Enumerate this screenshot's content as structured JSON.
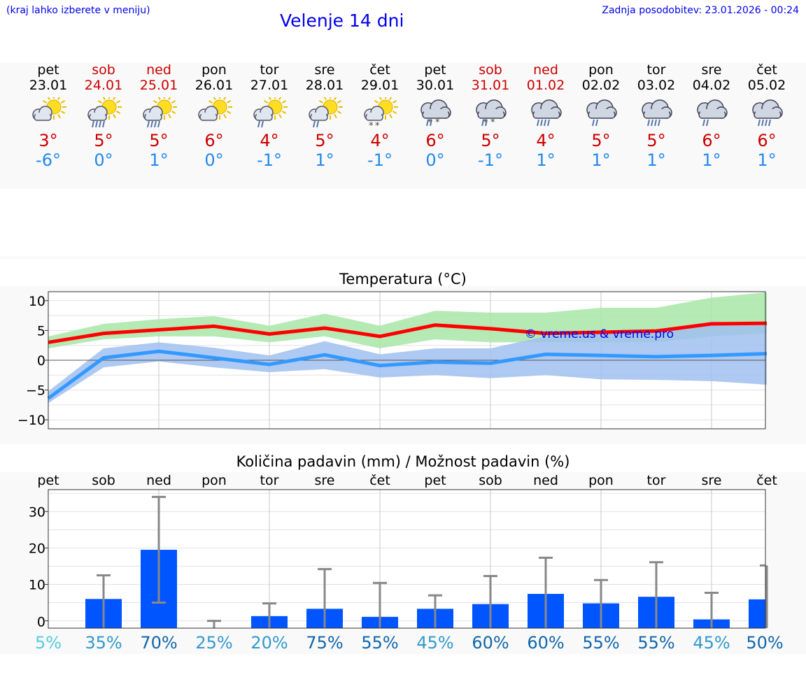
{
  "header": {
    "hint": "(kraj lahko izberete v meniju)",
    "title": "Velenje 14 dni",
    "updated": "Zadnja posodobitev: 23.01.2026 - 00:24"
  },
  "days": [
    {
      "name": "pet",
      "date": "23.01",
      "weekend": false,
      "icon": "sun-cloud",
      "tmax": "3°",
      "tmin": "-6°"
    },
    {
      "name": "sob",
      "date": "24.01",
      "weekend": true,
      "icon": "sun-cloud-rain",
      "tmax": "5°",
      "tmin": "0°"
    },
    {
      "name": "ned",
      "date": "25.01",
      "weekend": true,
      "icon": "sun-cloud-rain",
      "tmax": "5°",
      "tmin": "1°"
    },
    {
      "name": "pon",
      "date": "26.01",
      "weekend": false,
      "icon": "sun-cloud",
      "tmax": "6°",
      "tmin": "0°"
    },
    {
      "name": "tor",
      "date": "27.01",
      "weekend": false,
      "icon": "sun-cloud-light-rain",
      "tmax": "4°",
      "tmin": "-1°"
    },
    {
      "name": "sre",
      "date": "28.01",
      "weekend": false,
      "icon": "sun-cloud-light-rain",
      "tmax": "5°",
      "tmin": "1°"
    },
    {
      "name": "čet",
      "date": "29.01",
      "weekend": false,
      "icon": "sun-cloud-snow",
      "tmax": "4°",
      "tmin": "-1°"
    },
    {
      "name": "pet",
      "date": "30.01",
      "weekend": false,
      "icon": "cloud-sleet",
      "tmax": "6°",
      "tmin": "0°"
    },
    {
      "name": "sob",
      "date": "31.01",
      "weekend": true,
      "icon": "cloud-sleet",
      "tmax": "5°",
      "tmin": "-1°"
    },
    {
      "name": "ned",
      "date": "01.02",
      "weekend": true,
      "icon": "cloud-rain",
      "tmax": "4°",
      "tmin": "1°"
    },
    {
      "name": "pon",
      "date": "02.02",
      "weekend": false,
      "icon": "cloud-light-rain",
      "tmax": "5°",
      "tmin": "1°"
    },
    {
      "name": "tor",
      "date": "03.02",
      "weekend": false,
      "icon": "cloud-rain",
      "tmax": "5°",
      "tmin": "1°"
    },
    {
      "name": "sre",
      "date": "04.02",
      "weekend": false,
      "icon": "cloud-light-rain",
      "tmax": "6°",
      "tmin": "1°"
    },
    {
      "name": "čet",
      "date": "05.02",
      "weekend": false,
      "icon": "cloud-rain",
      "tmax": "6°",
      "tmin": "1°"
    }
  ],
  "chart_data": [
    {
      "type": "line",
      "title": "Temperatura (°C)",
      "ylim": [
        -11.5,
        11.5
      ],
      "yticks": [
        10,
        5,
        0,
        -5,
        -10
      ],
      "ytick_labels": [
        "10",
        "5",
        "0",
        "−5",
        "−10"
      ],
      "watermark": "© vreme.us & vreme.pro",
      "x": [
        0,
        1,
        2,
        3,
        4,
        5,
        6,
        7,
        8,
        9,
        10,
        11,
        12,
        13
      ],
      "series": [
        {
          "name": "max",
          "color": "#ff0000",
          "values": [
            3,
            4.5,
            5.1,
            5.7,
            4.4,
            5.4,
            4,
            5.9,
            5.3,
            4.5,
            4.7,
            4.9,
            6.1,
            6.2
          ]
        },
        {
          "name": "min",
          "color": "#3399ff",
          "values": [
            -6.4,
            0.4,
            1.5,
            0.4,
            -0.7,
            0.9,
            -0.9,
            -0.3,
            -0.5,
            1,
            0.8,
            0.6,
            0.8,
            1.1
          ]
        }
      ],
      "bands": [
        {
          "name": "max-range",
          "color": "#a8e6a8",
          "low": [
            2,
            3.5,
            4,
            4,
            3,
            4,
            2,
            3.5,
            3,
            3,
            3,
            3,
            4,
            4.5
          ],
          "high": [
            4,
            6.1,
            6.9,
            7.4,
            5.8,
            7.8,
            5.8,
            8.3,
            8,
            8,
            8.8,
            8.8,
            10.5,
            11.4
          ]
        },
        {
          "name": "min-range",
          "color": "#a0bff0",
          "low": [
            -7.2,
            -1.2,
            -0.2,
            -1.2,
            -2,
            -1.5,
            -2.9,
            -2.5,
            -3,
            -2.5,
            -3.2,
            -3.3,
            -3.5,
            -4.1
          ],
          "high": [
            -5.2,
            2,
            3,
            2.1,
            0.8,
            3.2,
            1,
            2,
            2,
            4,
            4.5,
            5,
            6.5,
            6
          ]
        }
      ]
    },
    {
      "type": "bar",
      "title": "Količina padavin (mm) / Možnost padavin (%)",
      "categories": [
        "pet",
        "sob",
        "ned",
        "pon",
        "tor",
        "sre",
        "čet",
        "pet",
        "sob",
        "ned",
        "pon",
        "tor",
        "sre",
        "čet"
      ],
      "ylim": [
        -2,
        36
      ],
      "yticks": [
        30,
        20,
        10,
        0
      ],
      "ytick_labels": [
        "30",
        "20",
        "10",
        "0"
      ],
      "values": [
        0,
        6,
        19.5,
        0,
        1.3,
        3.3,
        1.1,
        3.3,
        4.6,
        7.4,
        4.8,
        6.6,
        0.4,
        5.9
      ],
      "error_high": [
        null,
        12.5,
        34,
        0,
        4.8,
        14.2,
        10.4,
        7,
        12.3,
        17.3,
        11.2,
        16.1,
        7.7,
        15.2
      ],
      "error_low": [
        null,
        0,
        5,
        0,
        0,
        0,
        0,
        0,
        0,
        0,
        0,
        0,
        0,
        0
      ],
      "chance": [
        "5%",
        "35%",
        "70%",
        "25%",
        "20%",
        "75%",
        "55%",
        "45%",
        "60%",
        "60%",
        "55%",
        "55%",
        "45%",
        "50%"
      ],
      "chance_colors": [
        "#55ccdd",
        "#3399cc",
        "#1166aa",
        "#3399cc",
        "#3399cc",
        "#1166aa",
        "#1166aa",
        "#3399cc",
        "#1166aa",
        "#1166aa",
        "#1166aa",
        "#1166aa",
        "#3399cc",
        "#1166aa"
      ]
    }
  ]
}
